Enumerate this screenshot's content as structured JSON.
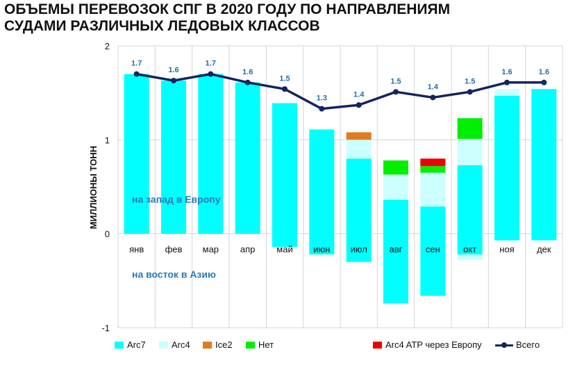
{
  "chart_data": {
    "type": "bar",
    "title_lines": [
      "ОБЪЕМЫ ПЕРЕВОЗОК СПГ В 2020 ГОДУ ПО НАПРАВЛЕНИЯМ",
      "СУДАМИ РАЗЛИЧНЫХ ЛЕДОВЫХ КЛАССОВ"
    ],
    "ylabel": "МИЛЛИОНЫ ТОНН",
    "ylim": [
      -1,
      2
    ],
    "yticks": [
      "2",
      "1",
      "0",
      "-1"
    ],
    "ytick_values": [
      2,
      1,
      0,
      -1
    ],
    "grid": true,
    "annotations": {
      "west": "на запад в Европу",
      "east": "на восток в Азию"
    },
    "categories": [
      "янв",
      "фев",
      "мар",
      "апр",
      "май",
      "июн",
      "июл",
      "авг",
      "сен",
      "окт",
      "ноя",
      "дек"
    ],
    "series": [
      {
        "name": "Arc7",
        "color": "#00ffff",
        "values_west": [
          1.7,
          1.63,
          1.7,
          1.61,
          1.39,
          1.11,
          0.8,
          0.36,
          0.29,
          0.73,
          1.47,
          1.54
        ],
        "values_east": [
          0,
          0,
          0,
          0,
          -0.14,
          -0.22,
          -0.3,
          -0.74,
          -0.66,
          -0.22,
          -0.07,
          -0.07
        ]
      },
      {
        "name": "Arc4",
        "color": "#ccffff",
        "values_west": [
          0,
          0,
          0,
          0,
          0,
          0,
          0.2,
          0.27,
          0.36,
          0.28,
          0.07,
          0
        ],
        "values_east": [
          0,
          0,
          0,
          0,
          0,
          0,
          0,
          0,
          0,
          -0.06,
          0,
          0
        ]
      },
      {
        "name": "Ice2",
        "color": "#e07b1e",
        "values_west": [
          0,
          0,
          0,
          0,
          0,
          0,
          0.08,
          0,
          0,
          0,
          0,
          0
        ],
        "values_east": [
          0,
          0,
          0,
          0,
          0,
          0,
          0,
          0,
          0,
          0,
          0,
          0
        ]
      },
      {
        "name": "Нет",
        "color": "#00ee00",
        "values_west": [
          0,
          0,
          0,
          0,
          0,
          0,
          0,
          0.15,
          0.07,
          0.22,
          0,
          0
        ],
        "values_east": [
          0,
          0,
          0,
          0,
          0,
          0,
          0,
          0,
          0,
          0,
          0,
          0
        ]
      },
      {
        "name": "Arc4 ATP через Европу",
        "color": "#ee0000",
        "values_west": [
          0,
          0,
          0,
          0,
          0,
          0,
          0,
          0,
          0.08,
          0,
          0,
          0
        ],
        "values_east": [
          0,
          0,
          0,
          0,
          0,
          0,
          0,
          0,
          0,
          0,
          0,
          0
        ]
      },
      {
        "name": "Всего",
        "type": "line",
        "color": "#13245e",
        "values": [
          1.7,
          1.63,
          1.7,
          1.61,
          1.54,
          1.33,
          1.37,
          1.51,
          1.45,
          1.51,
          1.61,
          1.61
        ],
        "labels": [
          "1.7",
          "1.6",
          "1.7",
          "1.6",
          "1.5",
          "1.3",
          "1.4",
          "1.5",
          "1.4",
          "1.5",
          "1.6",
          "1.6"
        ]
      }
    ],
    "legend": {
      "placement": "bottom"
    }
  }
}
